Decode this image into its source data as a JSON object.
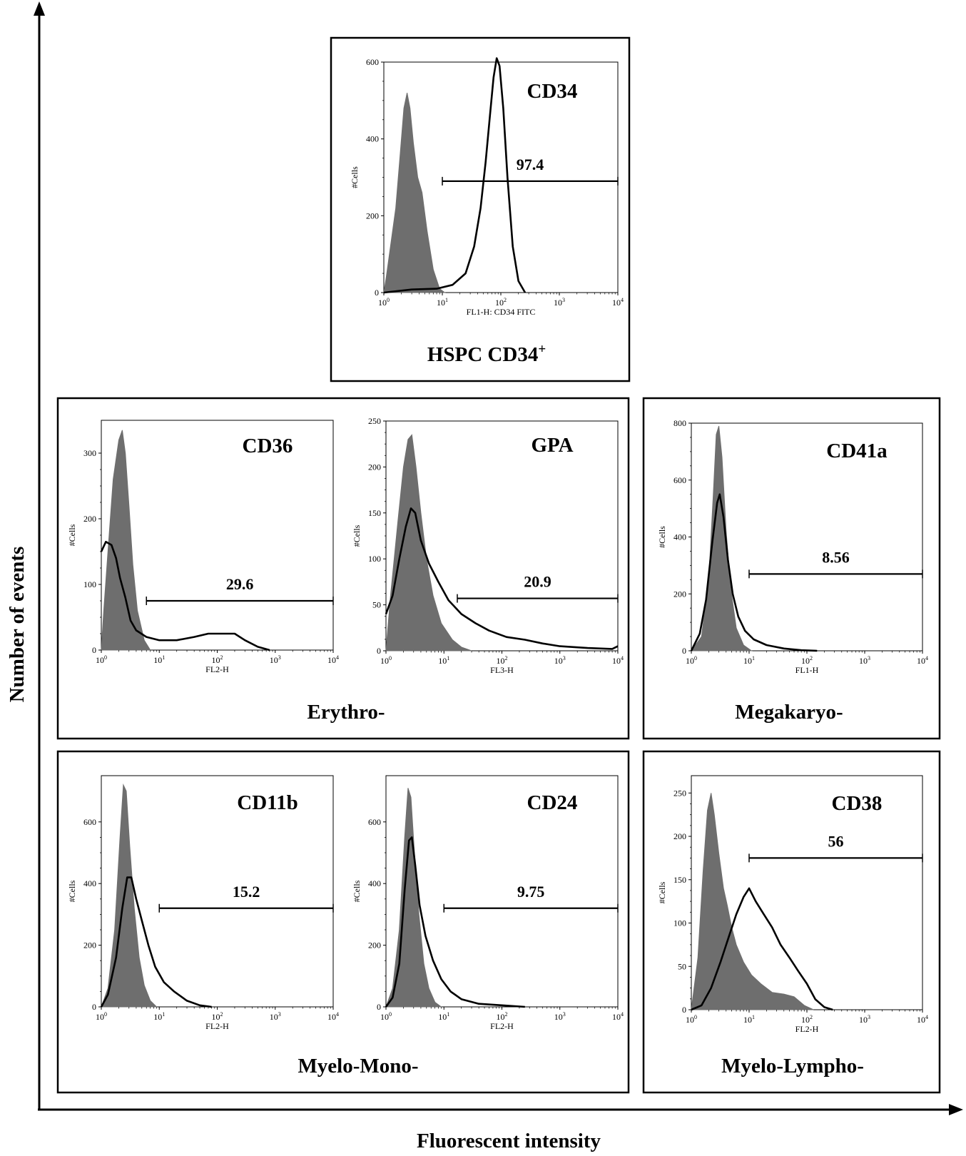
{
  "figure": {
    "y_axis_label": "Number of events",
    "x_axis_label": "Fluorescent intensity"
  },
  "groups": [
    {
      "id": "hspc",
      "label": "HSPC CD34",
      "label_sup": "+"
    },
    {
      "id": "erythro",
      "label": "Erythro-"
    },
    {
      "id": "megakaryo",
      "label": "Megakaryo-"
    },
    {
      "id": "myelomono",
      "label": "Myelo-Mono-"
    },
    {
      "id": "myelolympho",
      "label": "Myelo-Lympho-"
    }
  ],
  "chart_data": [
    {
      "type": "area",
      "group": "hspc",
      "title": "CD34",
      "xlabel": "FL1-H: CD34 FITC",
      "ylabel": "#Cells",
      "xscale": "log",
      "xlim": [
        1,
        10000
      ],
      "ylim": [
        0,
        600
      ],
      "yticks": [
        0,
        200,
        400,
        600
      ],
      "xticks": [
        1,
        10,
        100,
        1000,
        10000
      ],
      "gate": {
        "from": 10,
        "to": 10000,
        "y": 290,
        "value": "97.4"
      },
      "series": [
        {
          "role": "isotype-filled",
          "points": [
            [
              1,
              0
            ],
            [
              1.1,
              40
            ],
            [
              1.3,
              120
            ],
            [
              1.6,
              220
            ],
            [
              1.9,
              360
            ],
            [
              2.2,
              480
            ],
            [
              2.5,
              520
            ],
            [
              2.8,
              480
            ],
            [
              3.2,
              390
            ],
            [
              3.8,
              300
            ],
            [
              4.5,
              260
            ],
            [
              5.5,
              160
            ],
            [
              7,
              60
            ],
            [
              9,
              10
            ],
            [
              11,
              0
            ]
          ]
        },
        {
          "role": "stained-outline",
          "points": [
            [
              1,
              0
            ],
            [
              3,
              8
            ],
            [
              8,
              10
            ],
            [
              15,
              20
            ],
            [
              25,
              50
            ],
            [
              35,
              120
            ],
            [
              45,
              220
            ],
            [
              55,
              340
            ],
            [
              65,
              460
            ],
            [
              75,
              560
            ],
            [
              85,
              610
            ],
            [
              95,
              590
            ],
            [
              110,
              480
            ],
            [
              130,
              300
            ],
            [
              160,
              120
            ],
            [
              200,
              30
            ],
            [
              260,
              0
            ]
          ]
        }
      ]
    },
    {
      "type": "area",
      "group": "erythro",
      "title": "CD36",
      "xlabel": "FL2-H",
      "ylabel": "#Cells",
      "xscale": "log",
      "xlim": [
        1,
        10000
      ],
      "ylim": [
        0,
        350
      ],
      "yticks": [
        0,
        100,
        200,
        300
      ],
      "xticks": [
        1,
        10,
        100,
        1000,
        10000
      ],
      "gate": {
        "from": 6,
        "to": 10000,
        "y": 75,
        "value": "29.6"
      },
      "series": [
        {
          "role": "isotype-filled",
          "points": [
            [
              1,
              0
            ],
            [
              1.1,
              60
            ],
            [
              1.3,
              150
            ],
            [
              1.6,
              260
            ],
            [
              2,
              320
            ],
            [
              2.3,
              335
            ],
            [
              2.6,
              300
            ],
            [
              3,
              220
            ],
            [
              3.5,
              130
            ],
            [
              4.2,
              60
            ],
            [
              5.5,
              15
            ],
            [
              7,
              0
            ]
          ]
        },
        {
          "role": "stained-outline",
          "points": [
            [
              1,
              150
            ],
            [
              1.2,
              165
            ],
            [
              1.5,
              160
            ],
            [
              1.8,
              140
            ],
            [
              2.1,
              110
            ],
            [
              2.6,
              80
            ],
            [
              3.2,
              45
            ],
            [
              4,
              30
            ],
            [
              6,
              20
            ],
            [
              10,
              15
            ],
            [
              20,
              15
            ],
            [
              40,
              20
            ],
            [
              70,
              25
            ],
            [
              120,
              25
            ],
            [
              200,
              25
            ],
            [
              300,
              15
            ],
            [
              500,
              5
            ],
            [
              800,
              0
            ]
          ]
        }
      ]
    },
    {
      "type": "area",
      "group": "erythro",
      "title": "GPA",
      "xlabel": "FL3-H",
      "ylabel": "#Cells",
      "xscale": "log",
      "xlim": [
        1,
        10000
      ],
      "ylim": [
        0,
        250
      ],
      "yticks": [
        0,
        50,
        100,
        150,
        200,
        250
      ],
      "xticks": [
        1,
        10,
        100,
        1000,
        10000
      ],
      "gate": {
        "from": 17,
        "to": 10000,
        "y": 57,
        "value": "20.9"
      },
      "series": [
        {
          "role": "isotype-filled",
          "points": [
            [
              1,
              0
            ],
            [
              1.2,
              60
            ],
            [
              1.6,
              140
            ],
            [
              2,
              200
            ],
            [
              2.4,
              230
            ],
            [
              2.8,
              235
            ],
            [
              3.3,
              200
            ],
            [
              4,
              150
            ],
            [
              5,
              100
            ],
            [
              6.5,
              60
            ],
            [
              9,
              30
            ],
            [
              14,
              12
            ],
            [
              20,
              4
            ],
            [
              30,
              0
            ]
          ]
        },
        {
          "role": "stained-outline",
          "points": [
            [
              1,
              40
            ],
            [
              1.3,
              60
            ],
            [
              1.7,
              100
            ],
            [
              2.2,
              135
            ],
            [
              2.7,
              155
            ],
            [
              3.2,
              150
            ],
            [
              4,
              120
            ],
            [
              5.5,
              95
            ],
            [
              8,
              75
            ],
            [
              12,
              55
            ],
            [
              20,
              40
            ],
            [
              35,
              30
            ],
            [
              60,
              22
            ],
            [
              120,
              15
            ],
            [
              250,
              12
            ],
            [
              500,
              8
            ],
            [
              1000,
              5
            ],
            [
              3000,
              3
            ],
            [
              8000,
              2
            ],
            [
              10000,
              5
            ]
          ]
        }
      ]
    },
    {
      "type": "area",
      "group": "megakaryo",
      "title": "CD41a",
      "xlabel": "FL1-H",
      "ylabel": "#Cells",
      "xscale": "log",
      "xlim": [
        1,
        10000
      ],
      "ylim": [
        0,
        800
      ],
      "yticks": [
        0,
        200,
        400,
        600,
        800
      ],
      "xticks": [
        1,
        10,
        100,
        1000,
        10000
      ],
      "gate": {
        "from": 10,
        "to": 10000,
        "y": 270,
        "value": "8.56"
      },
      "series": [
        {
          "role": "isotype-filled",
          "points": [
            [
              1,
              0
            ],
            [
              1.5,
              50
            ],
            [
              2,
              250
            ],
            [
              2.4,
              550
            ],
            [
              2.7,
              760
            ],
            [
              3,
              790
            ],
            [
              3.4,
              680
            ],
            [
              4,
              420
            ],
            [
              4.8,
              220
            ],
            [
              6,
              80
            ],
            [
              8,
              20
            ],
            [
              11,
              0
            ]
          ]
        },
        {
          "role": "stained-outline",
          "points": [
            [
              1,
              0
            ],
            [
              1.4,
              60
            ],
            [
              1.8,
              180
            ],
            [
              2.3,
              380
            ],
            [
              2.8,
              520
            ],
            [
              3.1,
              550
            ],
            [
              3.6,
              470
            ],
            [
              4.3,
              320
            ],
            [
              5.2,
              200
            ],
            [
              6.5,
              120
            ],
            [
              8.5,
              70
            ],
            [
              12,
              40
            ],
            [
              20,
              20
            ],
            [
              40,
              8
            ],
            [
              80,
              2
            ],
            [
              150,
              0
            ]
          ]
        }
      ]
    },
    {
      "type": "area",
      "group": "myelomono",
      "title": "CD11b",
      "xlabel": "FL2-H",
      "ylabel": "#Cells",
      "xscale": "log",
      "xlim": [
        1,
        10000
      ],
      "ylim": [
        0,
        750
      ],
      "yticks": [
        0,
        200,
        400,
        600
      ],
      "xticks": [
        1,
        10,
        100,
        1000,
        10000
      ],
      "gate": {
        "from": 10,
        "to": 10000,
        "y": 320,
        "value": "15.2"
      },
      "series": [
        {
          "role": "isotype-filled",
          "points": [
            [
              1,
              0
            ],
            [
              1.3,
              60
            ],
            [
              1.7,
              250
            ],
            [
              2.1,
              550
            ],
            [
              2.4,
              720
            ],
            [
              2.7,
              700
            ],
            [
              3.1,
              520
            ],
            [
              3.7,
              320
            ],
            [
              4.5,
              160
            ],
            [
              5.5,
              70
            ],
            [
              7,
              20
            ],
            [
              9,
              0
            ]
          ]
        },
        {
          "role": "stained-outline",
          "points": [
            [
              1,
              0
            ],
            [
              1.3,
              40
            ],
            [
              1.8,
              160
            ],
            [
              2.3,
              320
            ],
            [
              2.8,
              420
            ],
            [
              3.3,
              420
            ],
            [
              4,
              350
            ],
            [
              5,
              280
            ],
            [
              6.5,
              200
            ],
            [
              8.5,
              130
            ],
            [
              12,
              80
            ],
            [
              18,
              50
            ],
            [
              30,
              20
            ],
            [
              50,
              5
            ],
            [
              80,
              0
            ]
          ]
        }
      ]
    },
    {
      "type": "area",
      "group": "myelomono",
      "title": "CD24",
      "xlabel": "FL2-H",
      "ylabel": "#Cells",
      "xscale": "log",
      "xlim": [
        1,
        10000
      ],
      "ylim": [
        0,
        750
      ],
      "yticks": [
        0,
        200,
        400,
        600
      ],
      "xticks": [
        1,
        10,
        100,
        1000,
        10000
      ],
      "gate": {
        "from": 10,
        "to": 10000,
        "y": 320,
        "value": "9.75"
      },
      "series": [
        {
          "role": "isotype-filled",
          "points": [
            [
              1,
              0
            ],
            [
              1.3,
              60
            ],
            [
              1.7,
              250
            ],
            [
              2.1,
              550
            ],
            [
              2.4,
              710
            ],
            [
              2.7,
              680
            ],
            [
              3.1,
              500
            ],
            [
              3.7,
              300
            ],
            [
              4.5,
              140
            ],
            [
              5.5,
              60
            ],
            [
              7,
              15
            ],
            [
              9,
              0
            ]
          ]
        },
        {
          "role": "stained-outline",
          "points": [
            [
              1,
              0
            ],
            [
              1.3,
              30
            ],
            [
              1.7,
              140
            ],
            [
              2.1,
              380
            ],
            [
              2.5,
              540
            ],
            [
              2.8,
              550
            ],
            [
              3.2,
              460
            ],
            [
              3.8,
              330
            ],
            [
              4.8,
              230
            ],
            [
              6.5,
              150
            ],
            [
              9,
              90
            ],
            [
              13,
              50
            ],
            [
              20,
              25
            ],
            [
              40,
              10
            ],
            [
              100,
              5
            ],
            [
              250,
              0
            ]
          ]
        }
      ]
    },
    {
      "type": "area",
      "group": "myelolympho",
      "title": "CD38",
      "xlabel": "FL2-H",
      "ylabel": "#Cells",
      "xscale": "log",
      "xlim": [
        1,
        10000
      ],
      "ylim": [
        0,
        270
      ],
      "yticks": [
        0,
        50,
        100,
        150,
        200,
        250
      ],
      "xticks": [
        1,
        10,
        100,
        1000,
        10000
      ],
      "gate": {
        "from": 10,
        "to": 10000,
        "y": 175,
        "value": "56"
      },
      "series": [
        {
          "role": "isotype-filled",
          "points": [
            [
              1,
              0
            ],
            [
              1.3,
              60
            ],
            [
              1.6,
              160
            ],
            [
              1.9,
              230
            ],
            [
              2.2,
              250
            ],
            [
              2.5,
              225
            ],
            [
              3,
              180
            ],
            [
              3.6,
              140
            ],
            [
              4.2,
              120
            ],
            [
              5,
              95
            ],
            [
              6,
              75
            ],
            [
              8,
              55
            ],
            [
              11,
              40
            ],
            [
              16,
              30
            ],
            [
              25,
              20
            ],
            [
              40,
              18
            ],
            [
              60,
              15
            ],
            [
              90,
              5
            ],
            [
              130,
              0
            ]
          ]
        },
        {
          "role": "stained-outline",
          "points": [
            [
              1,
              0
            ],
            [
              1.5,
              5
            ],
            [
              2.2,
              25
            ],
            [
              3.2,
              55
            ],
            [
              4.5,
              85
            ],
            [
              6,
              110
            ],
            [
              8,
              130
            ],
            [
              10,
              140
            ],
            [
              13,
              125
            ],
            [
              18,
              110
            ],
            [
              25,
              95
            ],
            [
              35,
              75
            ],
            [
              50,
              60
            ],
            [
              70,
              45
            ],
            [
              100,
              30
            ],
            [
              140,
              12
            ],
            [
              200,
              3
            ],
            [
              280,
              0
            ]
          ]
        }
      ]
    }
  ]
}
